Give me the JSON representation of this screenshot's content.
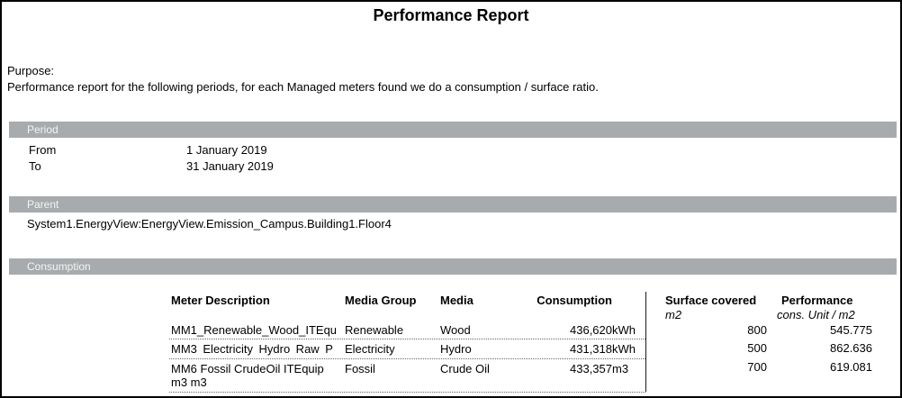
{
  "title": "Performance Report",
  "purpose": {
    "label": "Purpose:",
    "text": "Performance report for the following periods, for each Managed meters found we do a consumption / surface ratio."
  },
  "period": {
    "section_label": "Period",
    "from_label": "From",
    "from_value": "1 January 2019",
    "to_label": "To",
    "to_value": "31 January 2019"
  },
  "parent": {
    "section_label": "Parent",
    "path": "System1.EnergyView:EnergyView.Emission_Campus.Building1.Floor4"
  },
  "consumption": {
    "section_label": "Consumption",
    "columns": {
      "meter": "Meter Description",
      "media_group": "Media Group",
      "media": "Media",
      "consumption": "Consumption",
      "surface": "Surface covered",
      "surface_unit": "m2",
      "performance": "Performance",
      "performance_unit": "cons. Unit / m2"
    },
    "rows": [
      {
        "meter": "MM1_Renewable_Wood_ITEqu",
        "media_group": "Renewable",
        "media": "Wood",
        "consumption_value": "436,620",
        "consumption_unit": "kWh",
        "surface": "800",
        "performance": "545.775"
      },
      {
        "meter": "MM3 Electricity Hydro Raw P",
        "media_group": "Electricity",
        "media": "Hydro",
        "consumption_value": "431,318",
        "consumption_unit": "kWh",
        "surface": "500",
        "performance": "862.636"
      },
      {
        "meter": "MM6 Fossil CrudeOil ITEquip\nm3 m3",
        "media_group": "Fossil",
        "media": "Crude Oil",
        "consumption_value": "433,357",
        "consumption_unit": "m3",
        "surface": "700",
        "performance": "619.081"
      }
    ]
  },
  "colors": {
    "section_bar_bg": "#a7abad",
    "section_bar_text": "#f4f4f4",
    "page_border": "#000000",
    "divider": "#1a1a1a",
    "dotted_separator": "#666666"
  }
}
